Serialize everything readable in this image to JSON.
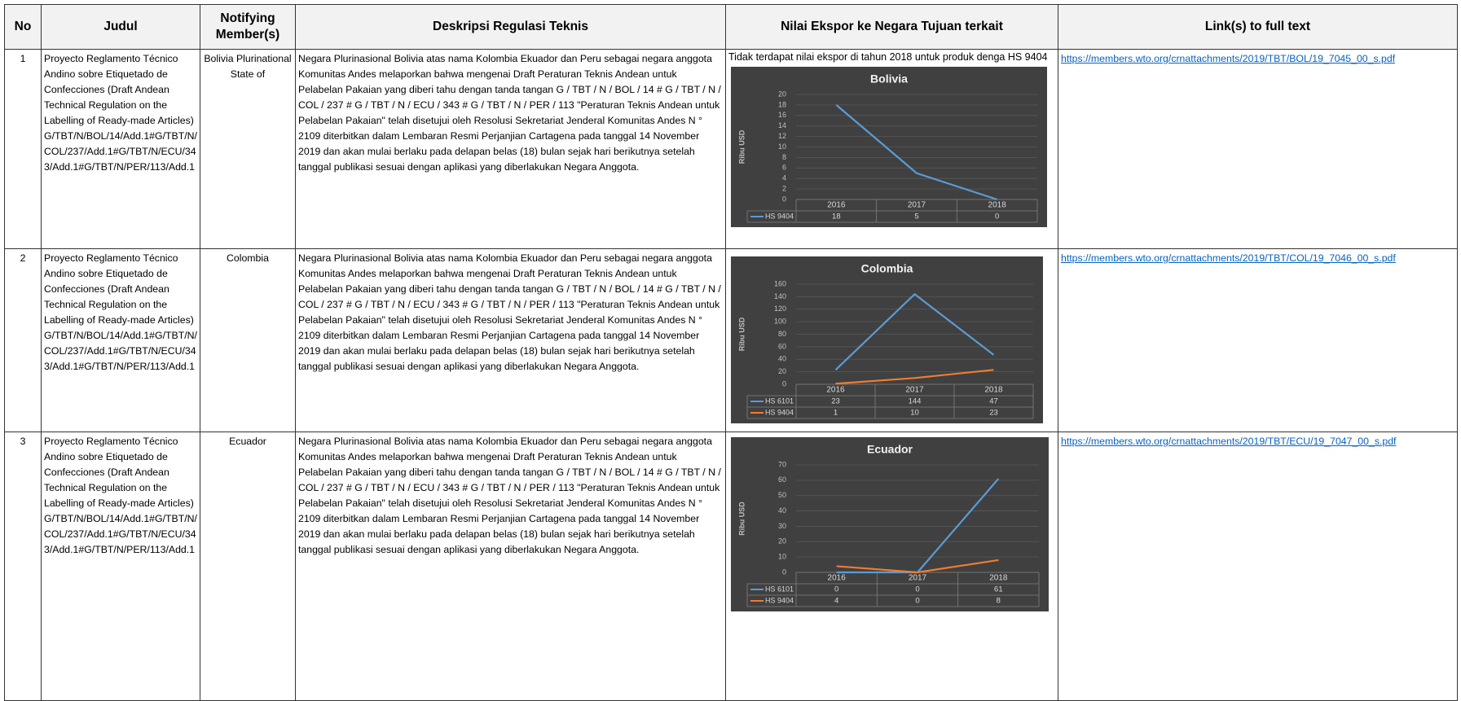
{
  "table": {
    "headers": [
      "No",
      "Judul",
      "Notifying Member(s)",
      "Deskripsi Regulasi Teknis",
      "Nilai Ekspor ke Negara Tujuan terkait",
      "Link(s) to full text"
    ],
    "rows": [
      {
        "no": 1,
        "judul": "Proyecto Reglamento Técnico Andino sobre Etiquetado de Confecciones (Draft Andean Technical Regulation on the Labelling of Ready-made Articles) G/TBT/N/BOL/14/Add.1#G/TBT/N/COL/237/Add.1#G/TBT/N/ECU/343/Add.1#G/TBT/N/PER/113/Add.1",
        "member": "Bolivia Plurinational State of",
        "description": "Negara Plurinasional Bolivia atas nama Kolombia Ekuador dan Peru sebagai negara anggota Komunitas Andes melaporkan bahwa mengenai Draft Peraturan Teknis Andean untuk Pelabelan Pakaian yang diberi tahu dengan tanda tangan G / TBT / N / BOL / 14 # G / TBT / N / COL / 237 # G / TBT / N / ECU / 343 # G / TBT / N / PER / 113 \"Peraturan Teknis Andean untuk Pelabelan Pakaian\" telah disetujui oleh Resolusi Sekretariat Jenderal Komunitas Andes N ° 2109 diterbitkan dalam Lembaran Resmi Perjanjian Cartagena pada tanggal 14 November 2019 dan akan mulai berlaku pada delapan belas (18) bulan sejak hari berikutnya setelah tanggal publikasi sesuai dengan aplikasi yang diberlakukan Negara Anggota.",
        "export_note": "Tidak terdapat nilai ekspor di tahun 2018 untuk produk denga HS 9404",
        "chart": {
          "type": "line",
          "title": "Bolivia",
          "ylabel": "Ribu USD",
          "categories": [
            "2016",
            "2017",
            "2018"
          ],
          "series": [
            {
              "name": "HS 9404",
              "color": "#5b9bd5",
              "values": [
                18,
                5,
                0
              ]
            }
          ],
          "ylim": [
            0,
            20
          ],
          "yticks": [
            0,
            2,
            4,
            6,
            8,
            10,
            12,
            14,
            16,
            18,
            20
          ]
        },
        "link": "https://members.wto.org/crnattachments/2019/TBT/BOL/19_7045_00_s.pdf"
      },
      {
        "no": 2,
        "judul": "Proyecto Reglamento Técnico Andino sobre Etiquetado de Confecciones (Draft Andean Technical Regulation on the Labelling of Ready-made Articles) G/TBT/N/BOL/14/Add.1#G/TBT/N/COL/237/Add.1#G/TBT/N/ECU/343/Add.1#G/TBT/N/PER/113/Add.1",
        "member": "Colombia",
        "description": "Negara Plurinasional Bolivia atas nama Kolombia Ekuador dan Peru sebagai negara anggota Komunitas Andes melaporkan bahwa mengenai Draft Peraturan Teknis Andean untuk Pelabelan Pakaian yang diberi tahu dengan tanda tangan G / TBT / N / BOL / 14 # G / TBT / N / COL / 237 # G / TBT / N / ECU / 343 # G / TBT / N / PER / 113 \"Peraturan Teknis Andean untuk Pelabelan Pakaian\" telah disetujui oleh Resolusi Sekretariat Jenderal Komunitas Andes N ° 2109 diterbitkan dalam Lembaran Resmi Perjanjian Cartagena pada tanggal 14 November 2019 dan akan mulai berlaku pada delapan belas (18) bulan sejak hari berikutnya setelah tanggal publikasi sesuai dengan aplikasi yang diberlakukan Negara Anggota.",
        "chart": {
          "type": "line",
          "title": "Colombia",
          "ylabel": "Ribu USD",
          "categories": [
            "2016",
            "2017",
            "2018"
          ],
          "series": [
            {
              "name": "HS 6101",
              "color": "#5b9bd5",
              "values": [
                23,
                144,
                47
              ]
            },
            {
              "name": "HS 9404",
              "color": "#ed7d31",
              "values": [
                1,
                10,
                23
              ]
            }
          ],
          "ylim": [
            0,
            160
          ],
          "yticks": [
            0,
            20,
            40,
            60,
            80,
            100,
            120,
            140,
            160
          ]
        },
        "link": "https://members.wto.org/crnattachments/2019/TBT/COL/19_7046_00_s.pdf"
      },
      {
        "no": 3,
        "judul": "Proyecto Reglamento Técnico Andino sobre Etiquetado de Confecciones (Draft Andean Technical Regulation on the Labelling of Ready-made Articles) G/TBT/N/BOL/14/Add.1#G/TBT/N/COL/237/Add.1#G/TBT/N/ECU/343/Add.1#G/TBT/N/PER/113/Add.1",
        "member": "Ecuador",
        "description": "Negara Plurinasional Bolivia atas nama Kolombia Ekuador dan Peru sebagai negara anggota Komunitas Andes melaporkan bahwa mengenai Draft Peraturan Teknis Andean untuk Pelabelan Pakaian yang diberi tahu dengan tanda tangan G / TBT / N / BOL / 14 # G / TBT / N / COL / 237 # G / TBT / N / ECU / 343 # G / TBT / N / PER / 113 \"Peraturan Teknis Andean untuk Pelabelan Pakaian\" telah disetujui oleh Resolusi Sekretariat Jenderal Komunitas Andes N ° 2109 diterbitkan dalam Lembaran Resmi Perjanjian Cartagena pada tanggal 14 November 2019 dan akan mulai berlaku pada delapan belas (18) bulan sejak hari berikutnya setelah tanggal publikasi sesuai dengan aplikasi yang diberlakukan Negara Anggota.",
        "chart": {
          "type": "line",
          "title": "Ecuador",
          "ylabel": "Ribu USD",
          "categories": [
            "2016",
            "2017",
            "2018"
          ],
          "series": [
            {
              "name": "HS 6101",
              "color": "#5b9bd5",
              "values": [
                0,
                0,
                61
              ]
            },
            {
              "name": "HS 9404",
              "color": "#ed7d31",
              "values": [
                4,
                0,
                8
              ]
            }
          ],
          "ylim": [
            0,
            70
          ],
          "yticks": [
            0,
            10,
            20,
            30,
            40,
            50,
            60,
            70
          ]
        },
        "link": "https://members.wto.org/crnattachments/2019/TBT/ECU/19_7047_00_s.pdf"
      }
    ]
  }
}
